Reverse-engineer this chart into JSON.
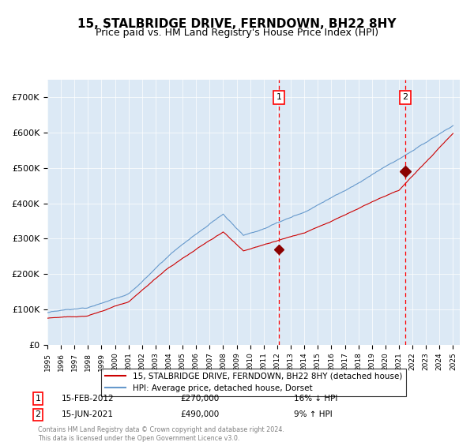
{
  "title": "15, STALBRIDGE DRIVE, FERNDOWN, BH22 8HY",
  "subtitle": "Price paid vs. HM Land Registry's House Price Index (HPI)",
  "background_color": "#dce9f5",
  "plot_bg_color": "#dce9f5",
  "hpi_color": "#6699cc",
  "price_color": "#cc0000",
  "ylim": [
    0,
    750000
  ],
  "yticks": [
    0,
    100000,
    200000,
    300000,
    400000,
    500000,
    600000,
    700000
  ],
  "ytick_labels": [
    "£0",
    "£100K",
    "£200K",
    "£300K",
    "£400K",
    "£500K",
    "£600K",
    "£700K"
  ],
  "sale1_date_num": 2012.12,
  "sale1_price": 270000,
  "sale1_label": "1",
  "sale2_date_num": 2021.46,
  "sale2_price": 490000,
  "sale2_label": "2",
  "legend_price_label": "15, STALBRIDGE DRIVE, FERNDOWN, BH22 8HY (detached house)",
  "legend_hpi_label": "HPI: Average price, detached house, Dorset",
  "annotation1": "1   15-FEB-2012      £270,000       16% ↓ HPI",
  "annotation2": "2   15-JUN-2021      £490,000        9% ↑ HPI",
  "footer": "Contains HM Land Registry data © Crown copyright and database right 2024.\nThis data is licensed under the Open Government Licence v3.0.",
  "title_fontsize": 11,
  "subtitle_fontsize": 9,
  "axis_fontsize": 8,
  "legend_fontsize": 8
}
